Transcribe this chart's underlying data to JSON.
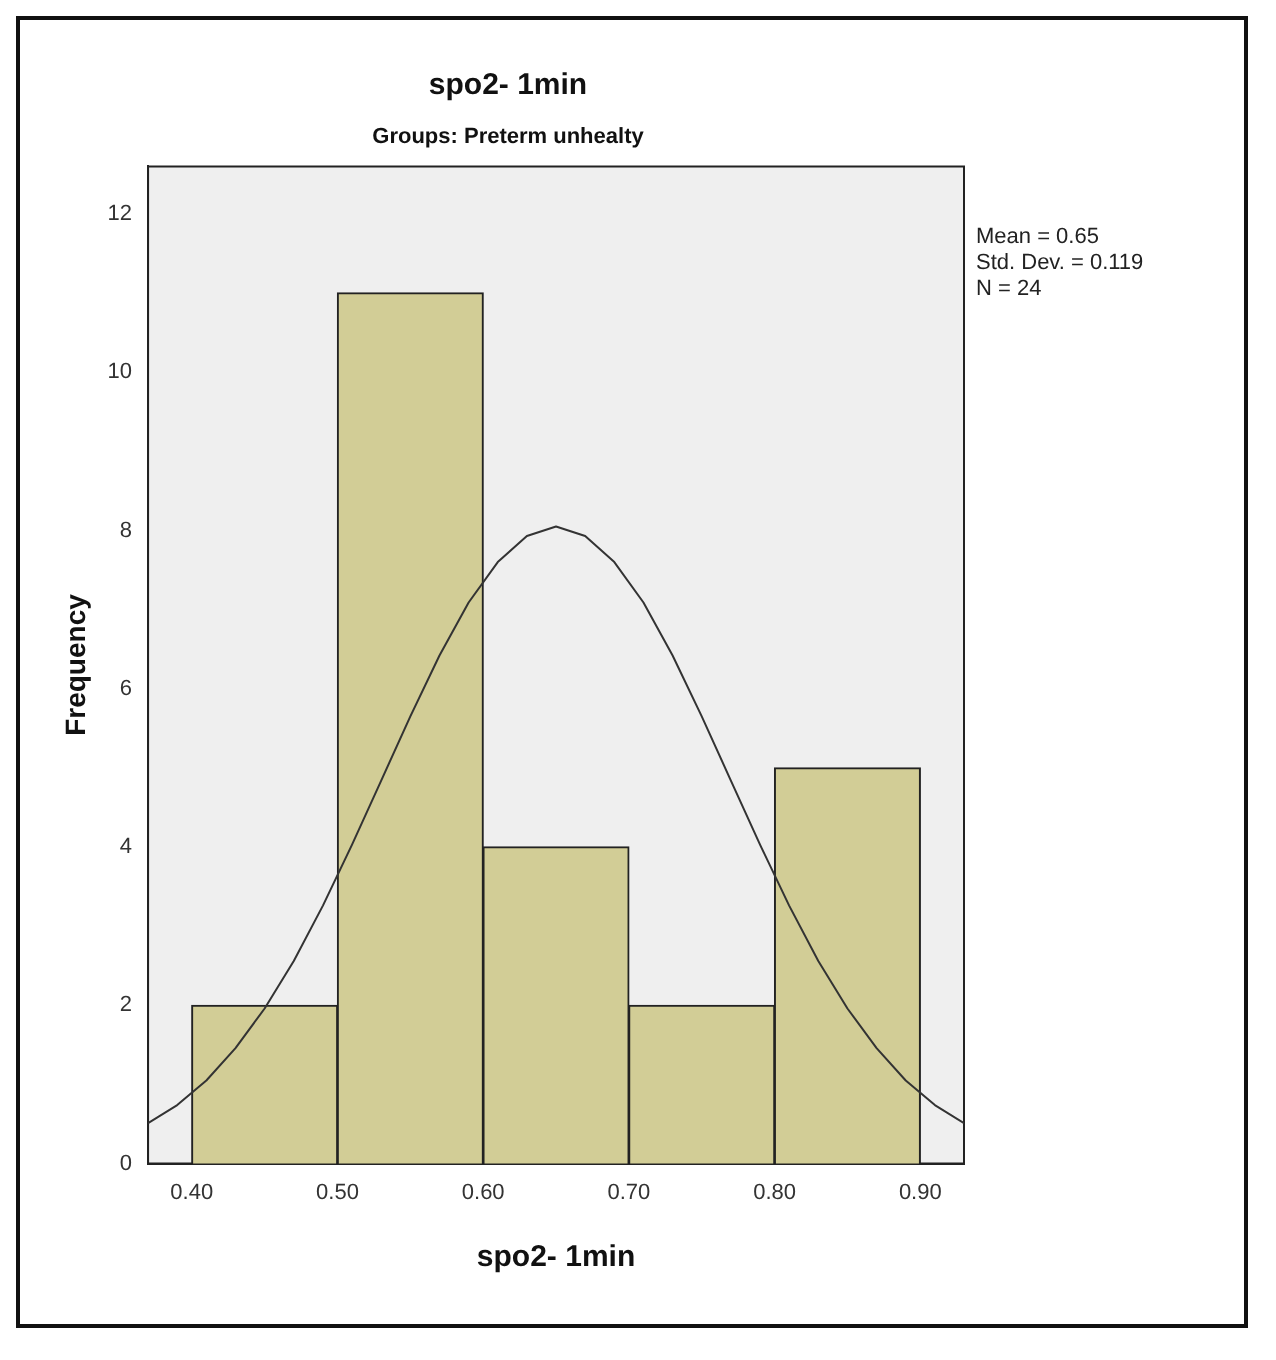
{
  "chart_data": {
    "type": "histogram",
    "title": "spo2- 1min",
    "subtitle": "Groups: Preterm unhealty",
    "xlabel": "spo2- 1min",
    "ylabel": "Frequency",
    "bins": [
      0.4,
      0.5,
      0.6,
      0.7,
      0.8,
      0.9
    ],
    "values": [
      2,
      11,
      4,
      2,
      5
    ],
    "color": "#d2cd96",
    "series": [
      {
        "type": "line",
        "color": "#333333",
        "x": [
          0.37,
          0.39,
          0.41,
          0.43,
          0.45,
          0.47,
          0.49,
          0.51,
          0.53,
          0.55,
          0.57,
          0.59,
          0.61,
          0.63,
          0.65,
          0.67,
          0.69,
          0.71,
          0.73,
          0.75,
          0.77,
          0.79,
          0.81,
          0.83,
          0.85,
          0.87,
          0.89,
          0.91,
          0.93
        ],
        "values": [
          0.51,
          0.74,
          1.05,
          1.46,
          1.96,
          2.56,
          3.26,
          4.03,
          4.84,
          5.65,
          6.42,
          7.09,
          7.6,
          7.93,
          8.05,
          7.93,
          7.6,
          7.09,
          6.42,
          5.65,
          4.84,
          4.03,
          3.26,
          2.56,
          1.96,
          1.46,
          1.05,
          0.74,
          0.51
        ]
      }
    ],
    "xlim": [
      0.37,
      0.93
    ],
    "xticks": [
      {
        "value": 0.4,
        "label": "0.40"
      },
      {
        "value": 0.5,
        "label": "0.50"
      },
      {
        "value": 0.6,
        "label": "0.60"
      },
      {
        "value": 0.7,
        "label": "0.70"
      },
      {
        "value": 0.8,
        "label": "0.80"
      },
      {
        "value": 0.9,
        "label": "0.90"
      }
    ],
    "ylim": [
      0,
      12.6
    ],
    "yticks": [
      0,
      2,
      4,
      6,
      8,
      10,
      12
    ],
    "grid": false,
    "legend": false,
    "annotations": [
      "Mean = 0.65",
      "Std. Dev. = 0.119",
      "N = 24"
    ]
  }
}
